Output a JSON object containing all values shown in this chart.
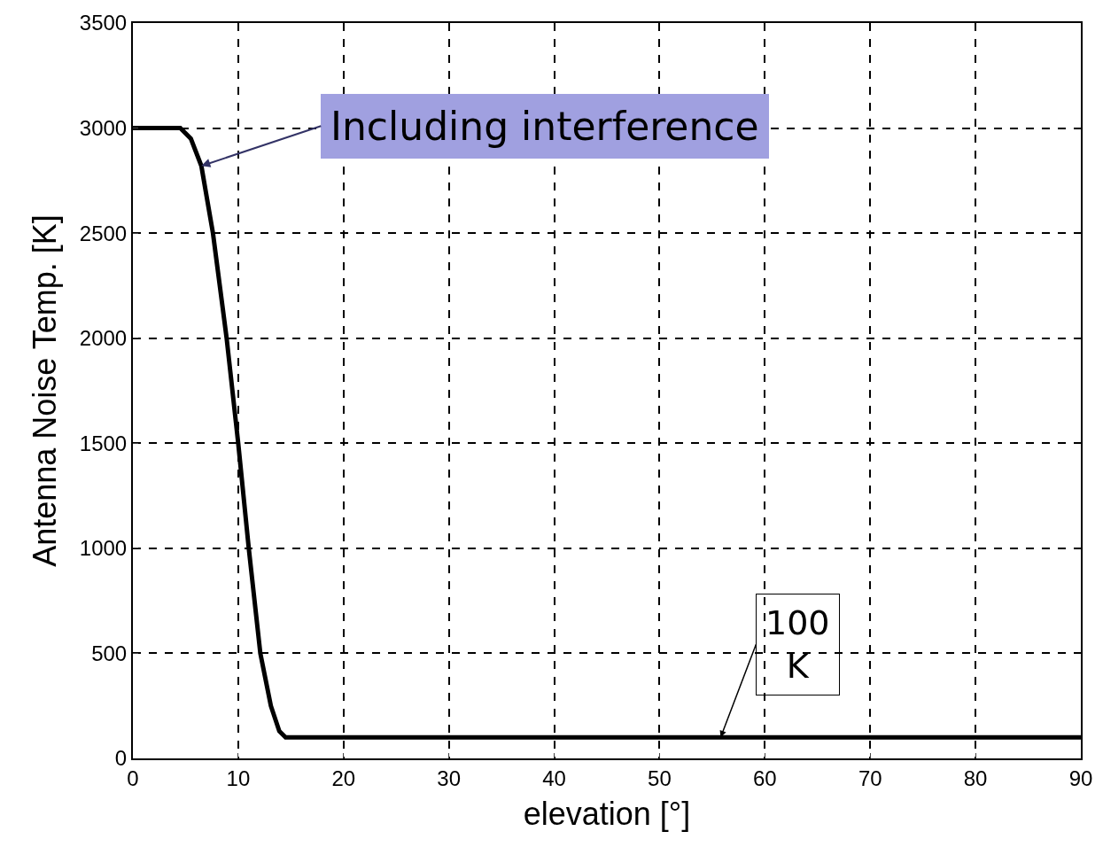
{
  "chart_data": {
    "type": "line",
    "xlabel": "elevation [°]",
    "ylabel": "Antenna Noise Temp. [K]",
    "series": [
      {
        "color": "#000000",
        "x": [
          0,
          4.5,
          5.5,
          6.5,
          7.6,
          8.9,
          10,
          11,
          12.1,
          13.1,
          13.9,
          14.5,
          90
        ],
        "values": [
          3000,
          3000,
          2950,
          2820,
          2500,
          2000,
          1500,
          1000,
          500,
          250,
          130,
          100,
          100
        ]
      }
    ],
    "xlim": [
      0,
      90
    ],
    "xticks": [
      0,
      10,
      20,
      30,
      40,
      50,
      60,
      70,
      80,
      90
    ],
    "ylim": [
      0,
      3500
    ],
    "yticks": [
      0,
      500,
      1000,
      1500,
      2000,
      2500,
      3000,
      3500
    ],
    "grid": true,
    "marker": "none",
    "line_style": "solid",
    "annotations": [
      {
        "text": "Including interference",
        "x": 6.5,
        "y": 2820
      },
      {
        "text": "100\nK",
        "x": 55.8,
        "y": 100
      }
    ]
  }
}
